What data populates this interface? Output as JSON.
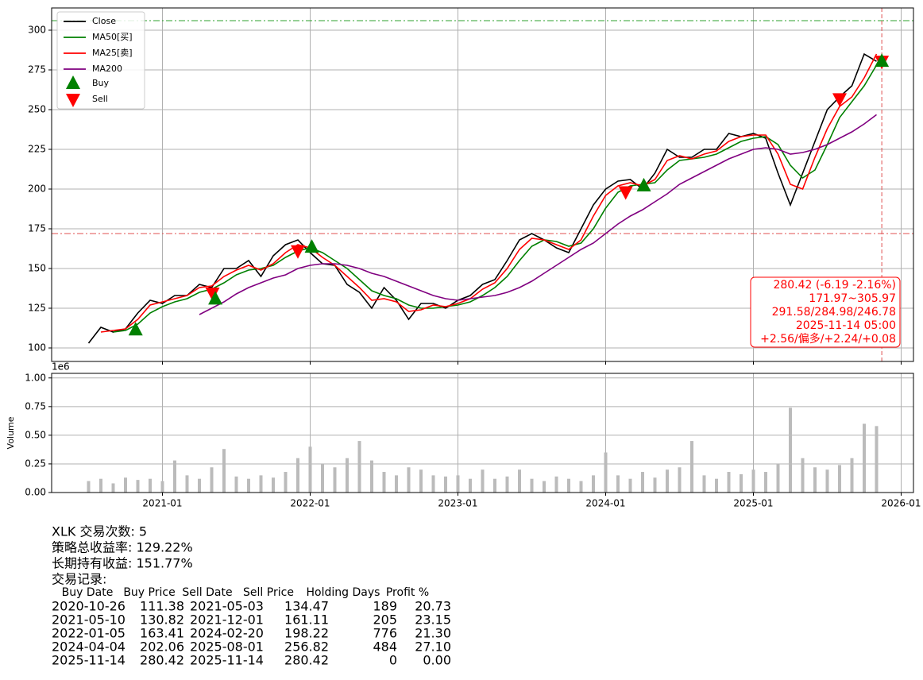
{
  "chart_data": [
    {
      "type": "line",
      "x": [
        "2020-07",
        "2020-08",
        "2020-09",
        "2020-10",
        "2020-11",
        "2020-12",
        "2021-01",
        "2021-02",
        "2021-03",
        "2021-04",
        "2021-05",
        "2021-06",
        "2021-07",
        "2021-08",
        "2021-09",
        "2021-10",
        "2021-11",
        "2021-12",
        "2022-01",
        "2022-02",
        "2022-03",
        "2022-04",
        "2022-05",
        "2022-06",
        "2022-07",
        "2022-08",
        "2022-09",
        "2022-10",
        "2022-11",
        "2022-12",
        "2023-01",
        "2023-02",
        "2023-03",
        "2023-04",
        "2023-05",
        "2023-06",
        "2023-07",
        "2023-08",
        "2023-09",
        "2023-10",
        "2023-11",
        "2023-12",
        "2024-01",
        "2024-02",
        "2024-03",
        "2024-04",
        "2024-05",
        "2024-06",
        "2024-07",
        "2024-08",
        "2024-09",
        "2024-10",
        "2024-11",
        "2024-12",
        "2025-01",
        "2025-02",
        "2025-03",
        "2025-04",
        "2025-05",
        "2025-06",
        "2025-07",
        "2025-08",
        "2025-09",
        "2025-10",
        "2025-11"
      ],
      "series": [
        {
          "name": "Close",
          "color": "#000000",
          "values": [
            103,
            113,
            110,
            112,
            122,
            130,
            128,
            133,
            133,
            140,
            138,
            150,
            150,
            155,
            145,
            158,
            165,
            168,
            160,
            153,
            152,
            140,
            135,
            125,
            138,
            130,
            118,
            128,
            128,
            125,
            130,
            133,
            140,
            143,
            155,
            168,
            172,
            168,
            163,
            160,
            175,
            190,
            200,
            205,
            206,
            200,
            210,
            225,
            220,
            220,
            225,
            225,
            235,
            233,
            235,
            232,
            210,
            190,
            210,
            230,
            250,
            258,
            265,
            285,
            280.42
          ]
        },
        {
          "name": "MA50[买]",
          "color": "#008000",
          "values": [
            null,
            null,
            110,
            111,
            115,
            122,
            126,
            129,
            131,
            135,
            137,
            141,
            146,
            149,
            150,
            152,
            157,
            161,
            163,
            160,
            155,
            150,
            143,
            136,
            133,
            131,
            127,
            125,
            125,
            126,
            127,
            129,
            133,
            138,
            145,
            155,
            164,
            168,
            167,
            164,
            166,
            175,
            188,
            198,
            202,
            203,
            204,
            212,
            218,
            219,
            220,
            222,
            226,
            230,
            232,
            233,
            228,
            215,
            207,
            212,
            228,
            245,
            255,
            265,
            278
          ]
        },
        {
          "name": "MA25[卖]",
          "color": "#ff0000",
          "values": [
            null,
            110,
            111,
            112,
            118,
            127,
            129,
            131,
            133,
            138,
            139,
            145,
            149,
            152,
            149,
            153,
            160,
            165,
            163,
            157,
            152,
            145,
            138,
            130,
            131,
            129,
            123,
            124,
            127,
            126,
            128,
            131,
            137,
            141,
            150,
            162,
            169,
            168,
            165,
            162,
            168,
            183,
            196,
            202,
            204,
            202,
            206,
            218,
            221,
            219,
            222,
            224,
            230,
            233,
            234,
            234,
            222,
            203,
            200,
            220,
            238,
            252,
            258,
            270,
            285
          ]
        },
        {
          "name": "MA200",
          "color": "#800080",
          "values": [
            null,
            null,
            null,
            null,
            null,
            null,
            null,
            null,
            null,
            121,
            125,
            129,
            134,
            138,
            141,
            144,
            146,
            150,
            152,
            153,
            153,
            152,
            150,
            147,
            145,
            142,
            139,
            136,
            133,
            131,
            130,
            131,
            132,
            133,
            135,
            138,
            142,
            147,
            152,
            157,
            162,
            166,
            172,
            178,
            183,
            187,
            192,
            197,
            203,
            207,
            211,
            215,
            219,
            222,
            225,
            226,
            225,
            222,
            223,
            225,
            228,
            232,
            236,
            241,
            246.78
          ]
        }
      ],
      "markers": {
        "buy": {
          "name": "Buy",
          "color": "#008000"
        },
        "sell": {
          "name": "Sell",
          "color": "#ff0000"
        }
      },
      "hlines": [
        {
          "value": 305.97,
          "color": "#2ca02c"
        },
        {
          "value": 171.97,
          "color": "#e05050"
        }
      ],
      "vline": {
        "x": "2025-11-14",
        "color": "#e05050"
      },
      "annotation": [
        "280.42 (-6.19 -2.16%)",
        "171.97~305.97",
        "291.58/284.98/246.78",
        "2025-11-14 05:00",
        "+2.56/偏多/+2.24/+0.08"
      ],
      "xlim": [
        "2020-04",
        "2026-02"
      ],
      "xticks": [
        "2021-01",
        "2022-01",
        "2023-01",
        "2024-01",
        "2025-01",
        "2026-01"
      ],
      "ylim": [
        91.5,
        314
      ],
      "yticks": [
        100,
        125,
        150,
        175,
        200,
        225,
        250,
        275,
        300
      ],
      "grid": true
    },
    {
      "type": "bar",
      "ylabel": "Volume",
      "offset_label": "1e6",
      "color": "#bbbbbb",
      "x": [
        "2020-07",
        "2020-08",
        "2020-09",
        "2020-10",
        "2020-11",
        "2020-12",
        "2021-01",
        "2021-02",
        "2021-03",
        "2021-04",
        "2021-05",
        "2021-06",
        "2021-07",
        "2021-08",
        "2021-09",
        "2021-10",
        "2021-11",
        "2021-12",
        "2022-01",
        "2022-02",
        "2022-03",
        "2022-04",
        "2022-05",
        "2022-06",
        "2022-07",
        "2022-08",
        "2022-09",
        "2022-10",
        "2022-11",
        "2022-12",
        "2023-01",
        "2023-02",
        "2023-03",
        "2023-04",
        "2023-05",
        "2023-06",
        "2023-07",
        "2023-08",
        "2023-09",
        "2023-10",
        "2023-11",
        "2023-12",
        "2024-01",
        "2024-02",
        "2024-03",
        "2024-04",
        "2024-05",
        "2024-06",
        "2024-07",
        "2024-08",
        "2024-09",
        "2024-10",
        "2024-11",
        "2024-12",
        "2025-01",
        "2025-02",
        "2025-03",
        "2025-04",
        "2025-05",
        "2025-06",
        "2025-07",
        "2025-08",
        "2025-09",
        "2025-10",
        "2025-11"
      ],
      "values": [
        0.1,
        0.12,
        0.08,
        0.13,
        0.11,
        0.12,
        0.1,
        0.28,
        0.15,
        0.12,
        0.22,
        0.38,
        0.14,
        0.12,
        0.15,
        0.13,
        0.18,
        0.3,
        0.4,
        0.25,
        0.22,
        0.3,
        0.45,
        0.28,
        0.18,
        0.15,
        0.22,
        0.2,
        0.15,
        0.14,
        0.15,
        0.12,
        0.2,
        0.12,
        0.14,
        0.2,
        0.12,
        0.1,
        0.14,
        0.12,
        0.1,
        0.15,
        0.35,
        0.15,
        0.12,
        0.18,
        0.13,
        0.2,
        0.22,
        0.45,
        0.15,
        0.12,
        0.18,
        0.16,
        0.2,
        0.18,
        0.25,
        0.74,
        0.3,
        0.22,
        0.2,
        0.24,
        0.3,
        0.6,
        0.58
      ],
      "xlim": [
        "2020-04",
        "2026-02"
      ],
      "xticks": [
        "2021-01",
        "2022-01",
        "2023-01",
        "2024-01",
        "2025-01",
        "2026-01"
      ],
      "ylim": [
        0,
        1.04
      ],
      "yticks": [
        {
          "value": 0,
          "label": "0.00"
        },
        0.25,
        {
          "value": 0.5,
          "label": "0.50"
        },
        0.75,
        {
          "value": 1,
          "label": "1.00"
        }
      ],
      "grid": true
    }
  ],
  "report": {
    "summary": [
      "XLK 交易次数: 5",
      "策略总收益率: 129.22%",
      "长期持有收益: 151.77%",
      "交易记录:"
    ],
    "columns": [
      "Buy Date",
      "Buy Price",
      "Sell Date",
      "Sell Price",
      "Holding Days",
      "Profit %"
    ],
    "rows": [
      [
        "2020-10-26",
        111.38,
        "2021-05-03",
        134.47,
        189,
        20.73
      ],
      [
        "2021-05-10",
        130.82,
        "2021-12-01",
        161.11,
        205,
        23.15
      ],
      [
        "2022-01-05",
        163.41,
        "2024-02-20",
        198.22,
        776,
        {
          "value": 21.3,
          "label": "21.30"
        }
      ],
      [
        "2024-04-04",
        202.06,
        "2025-08-01",
        256.82,
        484,
        {
          "value": 27.1,
          "label": "27.10"
        }
      ],
      [
        "2025-11-14",
        280.42,
        "2025-11-14",
        280.42,
        0,
        {
          "value": 0,
          "label": "0.00"
        }
      ]
    ]
  }
}
